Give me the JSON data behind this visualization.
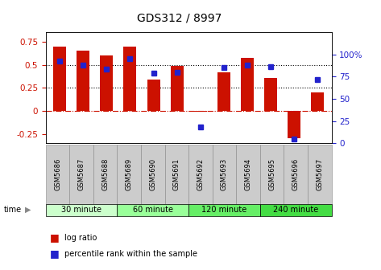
{
  "title": "GDS312 / 8997",
  "samples": [
    "GSM5686",
    "GSM5687",
    "GSM5688",
    "GSM5689",
    "GSM5690",
    "GSM5691",
    "GSM5692",
    "GSM5693",
    "GSM5694",
    "GSM5695",
    "GSM5696",
    "GSM5697"
  ],
  "log_ratio": [
    0.7,
    0.65,
    0.6,
    0.7,
    0.34,
    0.49,
    -0.01,
    0.42,
    0.57,
    0.36,
    -0.3,
    0.2
  ],
  "percentile": [
    93,
    88,
    84,
    95,
    79,
    80,
    18,
    85,
    88,
    86,
    5,
    72
  ],
  "bar_color": "#cc1100",
  "dot_color": "#2222cc",
  "ylim_left": [
    -0.35,
    0.85
  ],
  "ylim_right": [
    0,
    125
  ],
  "yticks_left": [
    -0.25,
    0,
    0.25,
    0.5,
    0.75
  ],
  "ytick_labels_left": [
    "-0.25",
    "0",
    "0.25",
    "0.5",
    "0.75"
  ],
  "yticks_right": [
    0,
    25,
    50,
    75,
    100
  ],
  "ytick_labels_right": [
    "0",
    "25",
    "50",
    "75",
    "100%"
  ],
  "hlines": [
    0.25,
    0.5
  ],
  "zero_line": 0,
  "groups": [
    {
      "label": "30 minute",
      "start": 0,
      "end": 3,
      "color": "#ccffcc"
    },
    {
      "label": "60 minute",
      "start": 3,
      "end": 6,
      "color": "#99ff99"
    },
    {
      "label": "120 minute",
      "start": 6,
      "end": 9,
      "color": "#66ee66"
    },
    {
      "label": "240 minute",
      "start": 9,
      "end": 12,
      "color": "#44dd44"
    }
  ],
  "time_label": "time",
  "legend_items": [
    {
      "label": "log ratio",
      "color": "#cc1100"
    },
    {
      "label": "percentile rank within the sample",
      "color": "#2222cc"
    }
  ],
  "background_color": "#ffffff",
  "axis_color_left": "#cc1100",
  "axis_color_right": "#2222cc",
  "bar_width": 0.55,
  "sample_box_color": "#cccccc",
  "sample_box_edge": "#888888"
}
